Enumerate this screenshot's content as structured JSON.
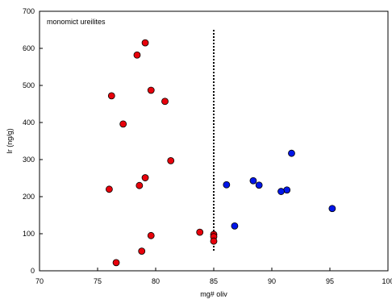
{
  "chart_data": {
    "type": "scatter",
    "title": "",
    "annotation": "monomict ureilites",
    "xlabel": "mg# oliv",
    "ylabel": "Ir (ng/g)",
    "xlim": [
      70,
      100
    ],
    "ylim": [
      0,
      700
    ],
    "xticks": [
      70,
      75,
      80,
      85,
      90,
      95,
      100
    ],
    "yticks": [
      0,
      100,
      200,
      300,
      400,
      500,
      600,
      700
    ],
    "grid": false,
    "legend": "none",
    "divider_x": 85,
    "divider_ymax": 650,
    "divider_ymin": 50,
    "series": [
      {
        "color": "#e8000b",
        "points": [
          {
            "x": 79.1,
            "y": 615
          },
          {
            "x": 78.4,
            "y": 582
          },
          {
            "x": 79.6,
            "y": 487
          },
          {
            "x": 76.2,
            "y": 472
          },
          {
            "x": 80.8,
            "y": 457
          },
          {
            "x": 77.2,
            "y": 396
          },
          {
            "x": 81.3,
            "y": 297
          },
          {
            "x": 79.1,
            "y": 251
          },
          {
            "x": 78.6,
            "y": 230
          },
          {
            "x": 76.0,
            "y": 220
          },
          {
            "x": 83.8,
            "y": 104
          },
          {
            "x": 85.0,
            "y": 98
          },
          {
            "x": 85.0,
            "y": 92
          },
          {
            "x": 79.6,
            "y": 95
          },
          {
            "x": 85.0,
            "y": 80
          },
          {
            "x": 78.8,
            "y": 53
          },
          {
            "x": 76.6,
            "y": 22
          }
        ]
      },
      {
        "color": "#0016e8",
        "points": [
          {
            "x": 91.7,
            "y": 317
          },
          {
            "x": 88.4,
            "y": 243
          },
          {
            "x": 86.1,
            "y": 232
          },
          {
            "x": 88.9,
            "y": 231
          },
          {
            "x": 91.3,
            "y": 218
          },
          {
            "x": 90.8,
            "y": 214
          },
          {
            "x": 95.2,
            "y": 168
          },
          {
            "x": 86.8,
            "y": 121
          }
        ]
      }
    ]
  }
}
